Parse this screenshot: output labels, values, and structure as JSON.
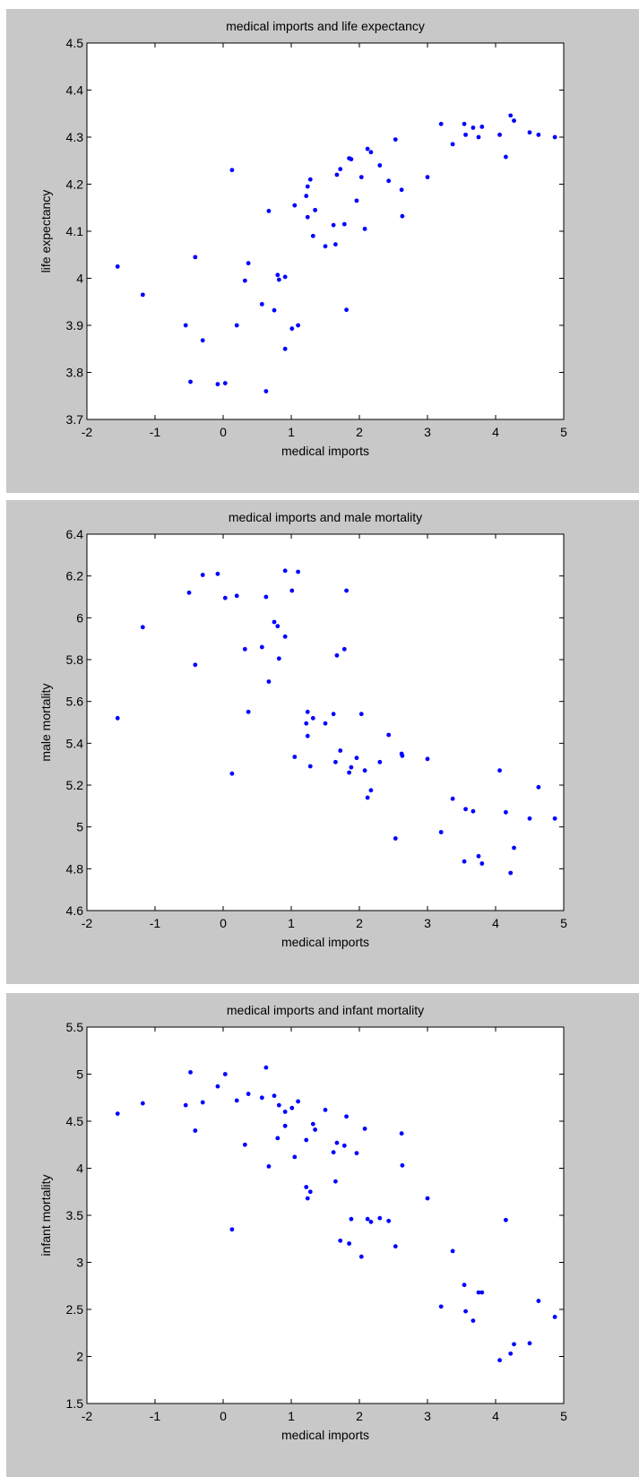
{
  "chart_data": [
    {
      "type": "scatter",
      "title": "medical imports and life expectancy",
      "xlabel": "medical imports",
      "ylabel": "life expectancy",
      "xlim": [
        -2,
        5
      ],
      "ylim": [
        3.7,
        4.5
      ],
      "xticks": [
        "-2",
        "-1",
        "0",
        "1",
        "2",
        "3",
        "4",
        "5"
      ],
      "yticks": [
        "3.7",
        "3.8",
        "3.9",
        "4",
        "4.1",
        "4.2",
        "4.3",
        "4.4",
        "4.5"
      ],
      "marker_color": "#0000ff",
      "points": [
        [
          -1.55,
          4.025
        ],
        [
          -1.18,
          3.965
        ],
        [
          -0.55,
          3.9
        ],
        [
          -0.48,
          3.78
        ],
        [
          -0.41,
          4.045
        ],
        [
          -0.3,
          3.868
        ],
        [
          -0.08,
          3.775
        ],
        [
          0.03,
          3.777
        ],
        [
          0.13,
          4.23
        ],
        [
          0.2,
          3.9
        ],
        [
          0.32,
          3.995
        ],
        [
          0.37,
          4.032
        ],
        [
          0.57,
          3.945
        ],
        [
          0.63,
          3.76
        ],
        [
          0.67,
          4.143
        ],
        [
          0.75,
          3.932
        ],
        [
          0.8,
          4.007
        ],
        [
          0.82,
          3.997
        ],
        [
          0.91,
          3.85
        ],
        [
          0.91,
          4.003
        ],
        [
          1.01,
          3.893
        ],
        [
          1.05,
          4.155
        ],
        [
          1.1,
          3.9
        ],
        [
          1.22,
          4.175
        ],
        [
          1.24,
          4.13
        ],
        [
          1.24,
          4.195
        ],
        [
          1.28,
          4.21
        ],
        [
          1.32,
          4.09
        ],
        [
          1.35,
          4.145
        ],
        [
          1.5,
          4.068
        ],
        [
          1.62,
          4.113
        ],
        [
          1.65,
          4.072
        ],
        [
          1.67,
          4.22
        ],
        [
          1.72,
          4.232
        ],
        [
          1.78,
          4.115
        ],
        [
          1.81,
          3.933
        ],
        [
          1.85,
          4.255
        ],
        [
          1.88,
          4.253
        ],
        [
          1.96,
          4.165
        ],
        [
          2.03,
          4.215
        ],
        [
          2.08,
          4.105
        ],
        [
          2.12,
          4.275
        ],
        [
          2.17,
          4.268
        ],
        [
          2.3,
          4.24
        ],
        [
          2.43,
          4.207
        ],
        [
          2.53,
          4.295
        ],
        [
          2.62,
          4.188
        ],
        [
          2.63,
          4.132
        ],
        [
          3.0,
          4.215
        ],
        [
          3.2,
          4.328
        ],
        [
          3.37,
          4.285
        ],
        [
          3.54,
          4.328
        ],
        [
          3.56,
          4.305
        ],
        [
          3.67,
          4.32
        ],
        [
          3.75,
          4.3
        ],
        [
          3.8,
          4.322
        ],
        [
          4.06,
          4.305
        ],
        [
          4.15,
          4.258
        ],
        [
          4.22,
          4.346
        ],
        [
          4.27,
          4.335
        ],
        [
          4.5,
          4.31
        ],
        [
          4.63,
          4.305
        ],
        [
          4.87,
          4.3
        ]
      ]
    },
    {
      "type": "scatter",
      "title": "medical imports and male mortality",
      "xlabel": "medical imports",
      "ylabel": "male mortality",
      "xlim": [
        -2,
        5
      ],
      "ylim": [
        4.6,
        6.4
      ],
      "xticks": [
        "-2",
        "-1",
        "0",
        "1",
        "2",
        "3",
        "4",
        "5"
      ],
      "yticks": [
        "4.6",
        "4.8",
        "5",
        "5.2",
        "5.4",
        "5.6",
        "5.8",
        "6",
        "6.2",
        "6.4"
      ],
      "marker_color": "#0000ff",
      "points": [
        [
          -1.55,
          5.52
        ],
        [
          -1.18,
          5.955
        ],
        [
          -0.5,
          6.12
        ],
        [
          -0.41,
          5.775
        ],
        [
          -0.3,
          6.205
        ],
        [
          -0.08,
          6.21
        ],
        [
          0.03,
          6.095
        ],
        [
          0.13,
          5.255
        ],
        [
          0.2,
          6.105
        ],
        [
          0.32,
          5.85
        ],
        [
          0.37,
          5.55
        ],
        [
          0.57,
          5.86
        ],
        [
          0.63,
          6.1
        ],
        [
          0.67,
          5.695
        ],
        [
          0.75,
          5.98
        ],
        [
          0.8,
          5.96
        ],
        [
          0.82,
          5.805
        ],
        [
          0.91,
          5.91
        ],
        [
          0.91,
          6.225
        ],
        [
          1.01,
          6.13
        ],
        [
          1.05,
          5.335
        ],
        [
          1.1,
          6.22
        ],
        [
          1.22,
          5.495
        ],
        [
          1.24,
          5.435
        ],
        [
          1.24,
          5.55
        ],
        [
          1.28,
          5.29
        ],
        [
          1.32,
          5.52
        ],
        [
          1.5,
          5.495
        ],
        [
          1.62,
          5.54
        ],
        [
          1.65,
          5.31
        ],
        [
          1.67,
          5.82
        ],
        [
          1.72,
          5.365
        ],
        [
          1.78,
          5.85
        ],
        [
          1.81,
          6.13
        ],
        [
          1.85,
          5.26
        ],
        [
          1.88,
          5.285
        ],
        [
          1.96,
          5.33
        ],
        [
          2.03,
          5.54
        ],
        [
          2.08,
          5.27
        ],
        [
          2.12,
          5.14
        ],
        [
          2.17,
          5.175
        ],
        [
          2.3,
          5.31
        ],
        [
          2.43,
          5.44
        ],
        [
          2.53,
          4.945
        ],
        [
          2.62,
          5.35
        ],
        [
          2.63,
          5.34
        ],
        [
          3.0,
          5.325
        ],
        [
          3.2,
          4.975
        ],
        [
          3.37,
          5.135
        ],
        [
          3.54,
          4.835
        ],
        [
          3.56,
          5.085
        ],
        [
          3.67,
          5.075
        ],
        [
          3.75,
          4.86
        ],
        [
          3.8,
          4.825
        ],
        [
          4.06,
          5.27
        ],
        [
          4.15,
          5.07
        ],
        [
          4.22,
          4.78
        ],
        [
          4.27,
          4.9
        ],
        [
          4.5,
          5.04
        ],
        [
          4.63,
          5.19
        ],
        [
          4.87,
          5.04
        ]
      ]
    },
    {
      "type": "scatter",
      "title": "medical imports and infant mortality",
      "xlabel": "medical imports",
      "ylabel": "infant mortality",
      "xlim": [
        -2,
        5
      ],
      "ylim": [
        1.5,
        5.5
      ],
      "xticks": [
        "-2",
        "-1",
        "0",
        "1",
        "2",
        "3",
        "4",
        "5"
      ],
      "yticks": [
        "1.5",
        "2",
        "2.5",
        "3",
        "3.5",
        "4",
        "4.5",
        "5",
        "5.5"
      ],
      "marker_color": "#0000ff",
      "points": [
        [
          -1.55,
          4.58
        ],
        [
          -1.18,
          4.69
        ],
        [
          -0.55,
          4.67
        ],
        [
          -0.48,
          5.02
        ],
        [
          -0.41,
          4.4
        ],
        [
          -0.3,
          4.7
        ],
        [
          -0.08,
          4.87
        ],
        [
          0.03,
          5.0
        ],
        [
          0.13,
          3.35
        ],
        [
          0.2,
          4.72
        ],
        [
          0.32,
          4.25
        ],
        [
          0.37,
          4.79
        ],
        [
          0.57,
          4.75
        ],
        [
          0.63,
          5.07
        ],
        [
          0.67,
          4.02
        ],
        [
          0.75,
          4.77
        ],
        [
          0.8,
          4.32
        ],
        [
          0.82,
          4.67
        ],
        [
          0.91,
          4.45
        ],
        [
          0.91,
          4.6
        ],
        [
          1.01,
          4.64
        ],
        [
          1.05,
          4.12
        ],
        [
          1.1,
          4.71
        ],
        [
          1.22,
          4.3
        ],
        [
          1.22,
          3.8
        ],
        [
          1.24,
          3.68
        ],
        [
          1.28,
          3.75
        ],
        [
          1.32,
          4.47
        ],
        [
          1.35,
          4.41
        ],
        [
          1.5,
          4.62
        ],
        [
          1.62,
          4.17
        ],
        [
          1.65,
          3.86
        ],
        [
          1.67,
          4.27
        ],
        [
          1.72,
          3.23
        ],
        [
          1.78,
          4.24
        ],
        [
          1.81,
          4.55
        ],
        [
          1.85,
          3.2
        ],
        [
          1.88,
          3.46
        ],
        [
          1.96,
          4.16
        ],
        [
          2.03,
          3.06
        ],
        [
          2.08,
          4.42
        ],
        [
          2.12,
          3.46
        ],
        [
          2.17,
          3.43
        ],
        [
          2.3,
          3.47
        ],
        [
          2.43,
          3.44
        ],
        [
          2.53,
          3.17
        ],
        [
          2.62,
          4.37
        ],
        [
          2.63,
          4.03
        ],
        [
          3.0,
          3.68
        ],
        [
          3.2,
          2.53
        ],
        [
          3.37,
          3.12
        ],
        [
          3.54,
          2.76
        ],
        [
          3.56,
          2.48
        ],
        [
          3.67,
          2.38
        ],
        [
          3.75,
          2.68
        ],
        [
          3.8,
          2.68
        ],
        [
          4.06,
          1.96
        ],
        [
          4.15,
          3.45
        ],
        [
          4.22,
          2.03
        ],
        [
          4.27,
          2.13
        ],
        [
          4.5,
          2.14
        ],
        [
          4.63,
          2.59
        ],
        [
          4.87,
          2.42
        ]
      ]
    }
  ]
}
